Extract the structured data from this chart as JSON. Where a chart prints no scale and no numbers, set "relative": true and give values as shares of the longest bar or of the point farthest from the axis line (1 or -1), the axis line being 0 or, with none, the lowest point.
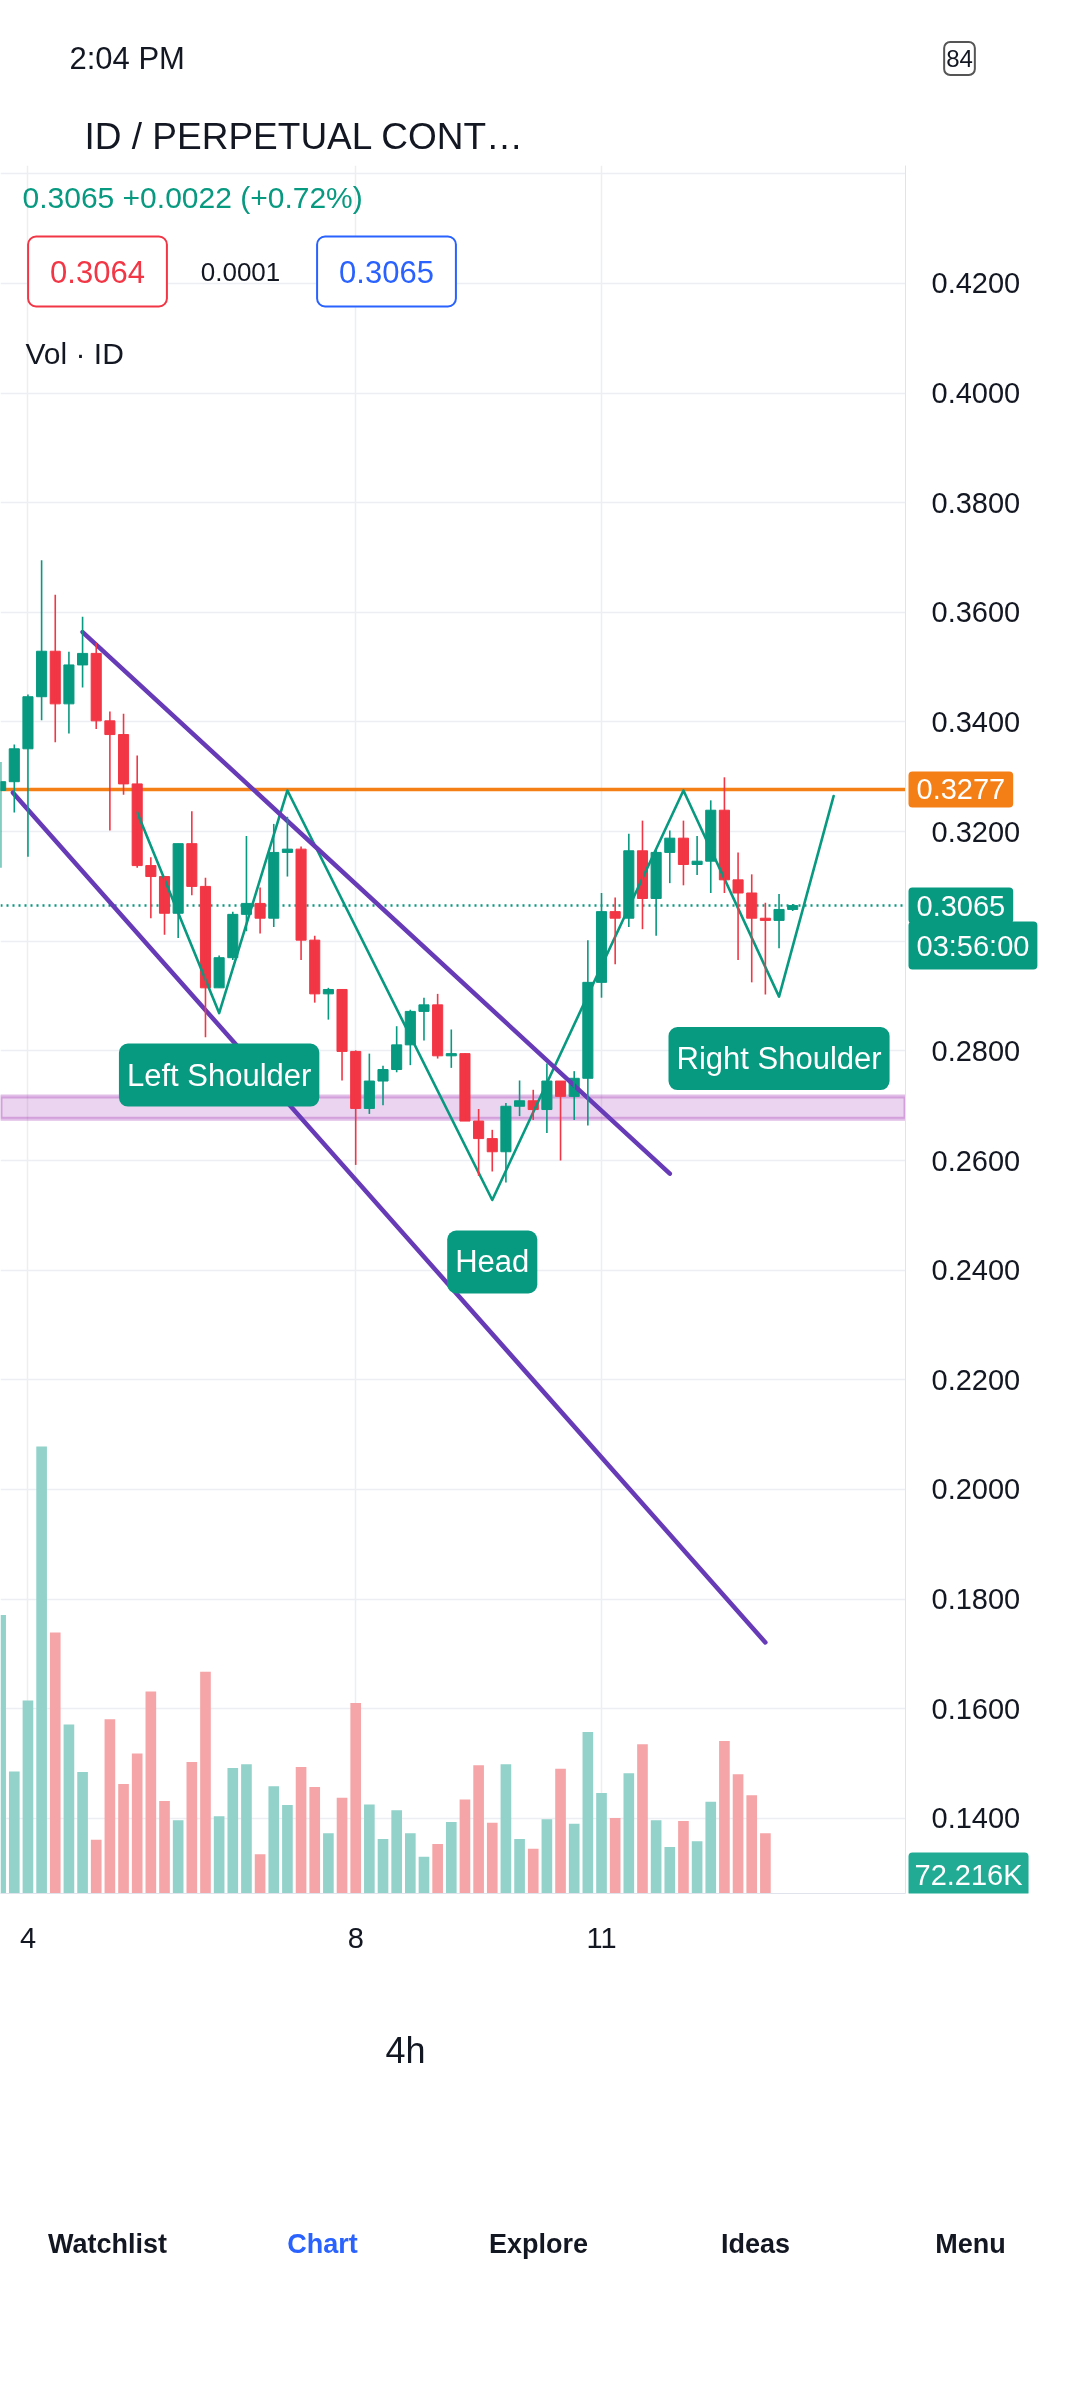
{
  "chart_data": [
    {
      "type": "candlestick",
      "title": "ID / PERPETUAL CONT…",
      "subtitle": "0.3065 +0.0022 (+0.72%)",
      "x": [
        3.6667,
        3.8333,
        4,
        4.1667,
        4.3333,
        4.5,
        4.6667,
        4.8333,
        5,
        5.1667,
        5.3333,
        5.5,
        5.6667,
        5.8333,
        6,
        6.1667,
        6.3333,
        6.5,
        6.6667,
        6.8333,
        7,
        7.1667,
        7.3333,
        7.5,
        7.6667,
        7.8333,
        8,
        8.1667,
        8.3333,
        8.5,
        8.6667,
        8.8333,
        9,
        9.1667,
        9.3333,
        9.5,
        9.6667,
        9.8333,
        10,
        10.1667,
        10.3333,
        10.5,
        10.6667,
        10.8333,
        11,
        11.1667,
        11.3333,
        11.5,
        11.6667,
        11.8333,
        12,
        12.1667,
        12.3333,
        12.5,
        12.6667,
        12.8333,
        13,
        13.1667,
        13.3333
      ],
      "ohlc": [
        [
          0.3275,
          0.3327,
          0.3134,
          0.3291
        ],
        [
          0.3291,
          0.3359,
          0.3235,
          0.3351
        ],
        [
          0.3351,
          0.345,
          0.3154,
          0.3446
        ],
        [
          0.3446,
          0.3695,
          0.3403,
          0.3529
        ],
        [
          0.3529,
          0.3632,
          0.3363,
          0.3433
        ],
        [
          0.3433,
          0.3528,
          0.3379,
          0.3504
        ],
        [
          0.3504,
          0.3592,
          0.3463,
          0.3525
        ],
        [
          0.3525,
          0.3544,
          0.3387,
          0.3402
        ],
        [
          0.3402,
          0.3419,
          0.3202,
          0.3377
        ],
        [
          0.3377,
          0.3415,
          0.3267,
          0.3287
        ],
        [
          0.3287,
          0.3339,
          0.3134,
          0.3138
        ],
        [
          0.3138,
          0.3153,
          0.3042,
          0.3118
        ],
        [
          0.3118,
          0.3118,
          0.3012,
          0.3051
        ],
        [
          0.3051,
          0.3178,
          0.3006,
          0.3178
        ],
        [
          0.3178,
          0.3237,
          0.3084,
          0.31
        ],
        [
          0.31,
          0.3116,
          0.2825,
          0.2915
        ],
        [
          0.2915,
          0.2974,
          0.2915,
          0.297
        ],
        [
          0.297,
          0.3054,
          0.2966,
          0.3049
        ],
        [
          0.3049,
          0.3192,
          0.3018,
          0.3069
        ],
        [
          0.3069,
          0.3098,
          0.3014,
          0.3042
        ],
        [
          0.3042,
          0.3214,
          0.3026,
          0.3162
        ],
        [
          0.3162,
          0.3227,
          0.3118,
          0.3168
        ],
        [
          0.3168,
          0.3173,
          0.2966,
          0.3002
        ],
        [
          0.3002,
          0.301,
          0.2888,
          0.2904
        ],
        [
          0.2904,
          0.2915,
          0.2857,
          0.2912
        ],
        [
          0.2912,
          0.2912,
          0.2746,
          0.2799
        ],
        [
          0.2799,
          0.2801,
          0.2592,
          0.2695
        ],
        [
          0.2695,
          0.2795,
          0.2685,
          0.2745
        ],
        [
          0.2745,
          0.2773,
          0.2701,
          0.2766
        ],
        [
          0.2766,
          0.2845,
          0.2761,
          0.2811
        ],
        [
          0.2811,
          0.2875,
          0.2774,
          0.2872
        ],
        [
          0.2872,
          0.2897,
          0.2819,
          0.2884
        ],
        [
          0.2884,
          0.2904,
          0.2786,
          0.2791
        ],
        [
          0.2791,
          0.2839,
          0.2769,
          0.2795
        ],
        [
          0.2795,
          0.2795,
          0.2672,
          0.2672
        ],
        [
          0.2672,
          0.2694,
          0.2572,
          0.264
        ],
        [
          0.264,
          0.2656,
          0.258,
          0.2616
        ],
        [
          0.2616,
          0.2705,
          0.256,
          0.2699
        ],
        [
          0.2699,
          0.2746,
          0.2681,
          0.2709
        ],
        [
          0.2709,
          0.2729,
          0.2674,
          0.2693
        ],
        [
          0.2693,
          0.2777,
          0.265,
          0.2745
        ],
        [
          0.2745,
          0.2745,
          0.26,
          0.2717
        ],
        [
          0.2717,
          0.2763,
          0.2674,
          0.275
        ],
        [
          0.275,
          0.3002,
          0.2664,
          0.2925
        ],
        [
          0.2925,
          0.3088,
          0.2897,
          0.3054
        ],
        [
          0.3054,
          0.308,
          0.2958,
          0.3042
        ],
        [
          0.3042,
          0.3196,
          0.3026,
          0.3165
        ],
        [
          0.3165,
          0.322,
          0.3022,
          0.3078
        ],
        [
          0.3078,
          0.317,
          0.301,
          0.3162
        ],
        [
          0.3162,
          0.3202,
          0.3106,
          0.3188
        ],
        [
          0.3188,
          0.322,
          0.3102,
          0.314
        ],
        [
          0.314,
          0.3192,
          0.3121,
          0.3146
        ],
        [
          0.3146,
          0.3257,
          0.3088,
          0.3239
        ],
        [
          0.3239,
          0.3299,
          0.3088,
          0.3112
        ],
        [
          0.3112,
          0.3162,
          0.2966,
          0.3088
        ],
        [
          0.3088,
          0.3122,
          0.2925,
          0.3042
        ],
        [
          0.3042,
          0.307,
          0.2903,
          0.3038
        ],
        [
          0.3038,
          0.3086,
          0.2987,
          0.3058
        ],
        [
          0.3058,
          0.3068,
          0.3055,
          0.3065
        ]
      ],
      "colors": [
        "#089981",
        "#089981",
        "#089981",
        "#089981",
        "#f23645",
        "#089981",
        "#089981",
        "#f23645",
        "#f23645",
        "#f23645",
        "#f23645",
        "#f23645",
        "#f23645",
        "#089981",
        "#f23645",
        "#f23645",
        "#089981",
        "#089981",
        "#089981",
        "#f23645",
        "#089981",
        "#089981",
        "#f23645",
        "#f23645",
        "#089981",
        "#f23645",
        "#f23645",
        "#089981",
        "#089981",
        "#089981",
        "#089981",
        "#089981",
        "#f23645",
        "#089981",
        "#f23645",
        "#f23645",
        "#f23645",
        "#089981",
        "#089981",
        "#f23645",
        "#089981",
        "#f23645",
        "#089981",
        "#089981",
        "#089981",
        "#f23645",
        "#089981",
        "#f23645",
        "#089981",
        "#089981",
        "#f23645",
        "#089981",
        "#089981",
        "#f23645",
        "#f23645",
        "#f23645",
        "#f23645",
        "#089981",
        "#089981"
      ],
      "series": [
        {
          "type": "line",
          "color": "#089981",
          "x": [
            5.3333,
            6.3333,
            7.1667,
            9.6667,
            12,
            13.1667,
            13.8333
          ],
          "values": [
            0.3235,
            0.2869,
            0.3275,
            0.2528,
            0.3275,
            0.2899,
            0.3265
          ]
        },
        {
          "type": "line",
          "color": "#673ab7",
          "x": [
            4.6667,
            11.8333
          ],
          "values": [
            0.3564,
            0.2576
          ]
        },
        {
          "type": "line",
          "color": "#673ab7",
          "x": [
            3.8167,
            13.0
          ],
          "values": [
            0.3271,
            0.1721
          ]
        }
      ],
      "xlim": [
        3.665,
        14.71
      ],
      "xticks": [
        4,
        8,
        11
      ],
      "ylim": [
        0.1263,
        0.4415
      ],
      "yticks": [
        {
          "value": 0.14,
          "label": "0.1400"
        },
        {
          "value": 0.16,
          "label": "0.1600"
        },
        {
          "value": 0.18,
          "label": "0.1800"
        },
        {
          "value": 0.2,
          "label": "0.2000"
        },
        {
          "value": 0.22,
          "label": "0.2200"
        },
        {
          "value": 0.24,
          "label": "0.2400"
        },
        {
          "value": 0.26,
          "label": "0.2600"
        },
        {
          "value": 0.28,
          "label": "0.2800"
        },
        {
          "value": 0.3,
          "label": null
        },
        {
          "value": 0.32,
          "label": "0.3200"
        },
        {
          "value": 0.34,
          "label": "0.3400"
        },
        {
          "value": 0.36,
          "label": "0.3600"
        },
        {
          "value": 0.38,
          "label": "0.3800"
        },
        {
          "value": 0.4,
          "label": "0.4000"
        },
        {
          "value": 0.42,
          "label": "0.4200"
        },
        {
          "value": 0.44,
          "label": null
        }
      ],
      "grid": true,
      "ref_lines": [
        {
          "axis": "y",
          "value": 0.3277,
          "label": "0.3277",
          "color": "#f57f17"
        },
        {
          "axis": "y",
          "value": 0.3065,
          "label": "0.3065",
          "color": "#089981",
          "line_style": "dotted"
        }
      ],
      "bands": [
        {
          "axis": "y",
          "from": 0.2676,
          "to": 0.2717,
          "color": "#9c27b0"
        }
      ],
      "annotations": [
        {
          "text": "Left Shoulder",
          "x": 6.3333,
          "y": 0.2869
        },
        {
          "text": "Head",
          "x": 9.6667,
          "y": 0.2528
        },
        {
          "text": "Right Shoulder",
          "x": 13.1667,
          "y": 0.2899
        },
        "0.3064",
        "0.0001",
        "0.3065",
        "03:56:00",
        "2:04 PM",
        "84",
        "4h",
        "Watchlist",
        "Chart",
        "Explore",
        "Ideas",
        "Menu"
      ]
    },
    {
      "type": "bar",
      "title": "Vol · ID",
      "relative": true,
      "tick_labels": false,
      "xlim": [
        3.665,
        14.71
      ],
      "x": [
        3.6667,
        3.8333,
        4,
        4.1667,
        4.3333,
        4.5,
        4.6667,
        4.8333,
        5,
        5.1667,
        5.3333,
        5.5,
        5.6667,
        5.8333,
        6,
        6.1667,
        6.3333,
        6.5,
        6.6667,
        6.8333,
        7,
        7.1667,
        7.3333,
        7.5,
        7.6667,
        7.8333,
        8,
        8.1667,
        8.3333,
        8.5,
        8.6667,
        8.8333,
        9,
        9.1667,
        9.3333,
        9.5,
        9.6667,
        9.8333,
        10,
        10.1667,
        10.3333,
        10.5,
        10.6667,
        10.8333,
        11,
        11.1667,
        11.3333,
        11.5,
        11.6667,
        11.8333,
        12,
        12.1667,
        12.3333,
        12.5,
        12.6667,
        12.8333,
        13
      ],
      "values": [
        0.623,
        0.273,
        0.432,
        1,
        0.584,
        0.378,
        0.272,
        0.12,
        0.39,
        0.245,
        0.313,
        0.452,
        0.207,
        0.164,
        0.294,
        0.496,
        0.173,
        0.281,
        0.289,
        0.088,
        0.24,
        0.198,
        0.283,
        0.238,
        0.135,
        0.214,
        0.426,
        0.199,
        0.122,
        0.186,
        0.135,
        0.082,
        0.111,
        0.16,
        0.21,
        0.287,
        0.158,
        0.289,
        0.122,
        0.1,
        0.166,
        0.279,
        0.156,
        0.361,
        0.225,
        0.169,
        0.269,
        0.334,
        0.164,
        0.104,
        0.162,
        0.117,
        0.205,
        0.341,
        0.267,
        0.22,
        0.135
      ],
      "colors": [
        "#92d2ca",
        "#92d2ca",
        "#92d2ca",
        "#92d2ca",
        "#f5a5a7",
        "#92d2ca",
        "#92d2ca",
        "#f5a5a7",
        "#f5a5a7",
        "#f5a5a7",
        "#f5a5a7",
        "#f5a5a7",
        "#f5a5a7",
        "#92d2ca",
        "#f5a5a7",
        "#f5a5a7",
        "#92d2ca",
        "#92d2ca",
        "#92d2ca",
        "#f5a5a7",
        "#92d2ca",
        "#92d2ca",
        "#f5a5a7",
        "#f5a5a7",
        "#92d2ca",
        "#f5a5a7",
        "#f5a5a7",
        "#92d2ca",
        "#92d2ca",
        "#92d2ca",
        "#92d2ca",
        "#92d2ca",
        "#f5a5a7",
        "#92d2ca",
        "#f5a5a7",
        "#f5a5a7",
        "#f5a5a7",
        "#92d2ca",
        "#92d2ca",
        "#f5a5a7",
        "#92d2ca",
        "#f5a5a7",
        "#92d2ca",
        "#92d2ca",
        "#92d2ca",
        "#f5a5a7",
        "#92d2ca",
        "#f5a5a7",
        "#92d2ca",
        "#92d2ca",
        "#f5a5a7",
        "#92d2ca",
        "#92d2ca",
        "#f5a5a7",
        "#f5a5a7",
        "#f5a5a7",
        "#f5a5a7"
      ],
      "annotations": [
        "72.216K"
      ]
    }
  ]
}
